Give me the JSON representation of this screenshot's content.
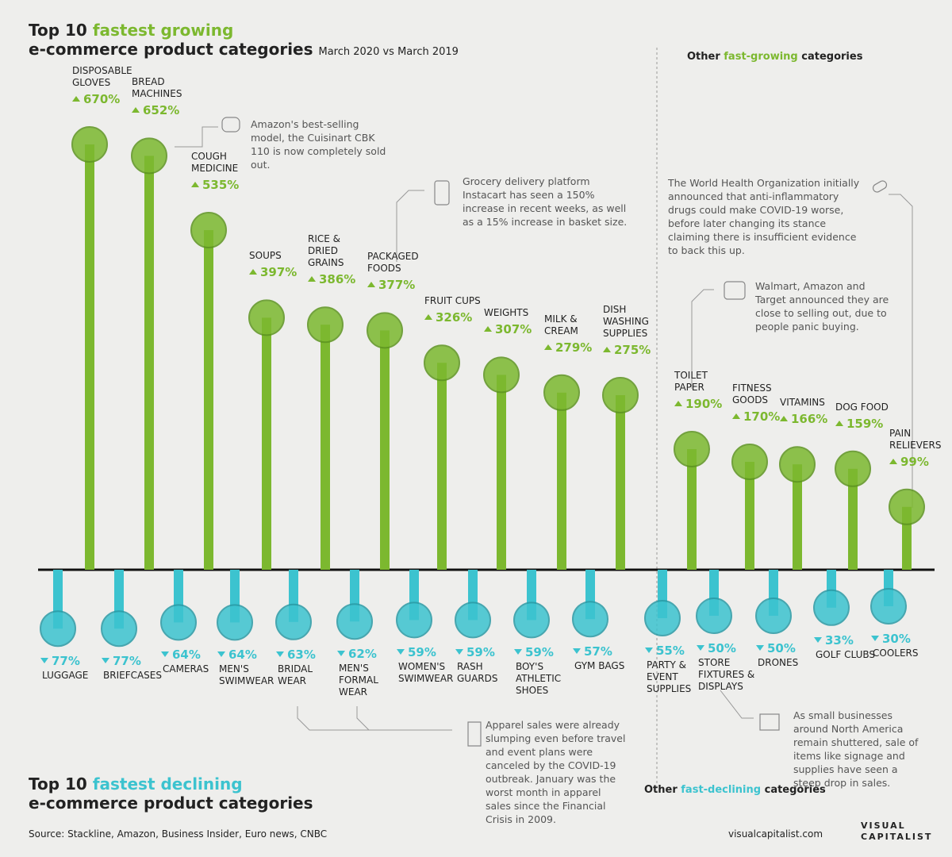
{
  "chart_data": {
    "type": "lollipop",
    "title_top": {
      "pre": "Top 10",
      "highlight": "fastest growing",
      "post": "e-commerce product categories"
    },
    "subtitle": "March 2020 vs March 2019",
    "title_bottom": {
      "pre": "Top 10",
      "highlight": "fastest declining",
      "post": "e-commerce product categories"
    },
    "other_growing_heading": {
      "pre": "Other",
      "highlight": "fast-growing",
      "post": "categories"
    },
    "other_declining_heading": {
      "pre": "Other",
      "highlight": "fast-declining",
      "post": "categories"
    },
    "growing": {
      "color": "#7cb82f",
      "categories": [
        "DISPOSABLE GLOVES",
        "BREAD MACHINES",
        "COUGH MEDICINE",
        "SOUPS",
        "RICE & DRIED GRAINS",
        "PACKAGED FOODS",
        "FRUIT CUPS",
        "WEIGHTS",
        "MILK & CREAM",
        "DISH WASHING SUPPLIES",
        "TOILET PAPER",
        "FITNESS GOODS",
        "VITAMINS",
        "DOG FOOD",
        "PAIN RELIEVERS"
      ],
      "values": [
        670,
        652,
        535,
        397,
        386,
        377,
        326,
        307,
        279,
        275,
        190,
        170,
        166,
        159,
        99
      ],
      "value_labels": [
        "670%",
        "652%",
        "535%",
        "397%",
        "386%",
        "377%",
        "326%",
        "307%",
        "279%",
        "275%",
        "190%",
        "170%",
        "166%",
        "159%",
        "99%"
      ]
    },
    "declining": {
      "color": "#3cc3cf",
      "categories": [
        "LUGGAGE",
        "BRIEFCASES",
        "CAMERAS",
        "MEN'S SWIMWEAR",
        "BRIDAL WEAR",
        "MEN'S FORMAL WEAR",
        "WOMEN'S SWIMWEAR",
        "RASH GUARDS",
        "BOY'S ATHLETIC SHOES",
        "GYM BAGS",
        "PARTY & EVENT SUPPLIES",
        "STORE FIXTURES & DISPLAYS",
        "DRONES",
        "GOLF CLUBS",
        "COOLERS"
      ],
      "values": [
        77,
        77,
        64,
        64,
        63,
        62,
        59,
        59,
        59,
        57,
        55,
        50,
        50,
        33,
        30
      ],
      "value_labels": [
        "77%",
        "77%",
        "64%",
        "64%",
        "63%",
        "62%",
        "59%",
        "59%",
        "59%",
        "57%",
        "55%",
        "50%",
        "50%",
        "33%",
        "30%"
      ]
    },
    "annotations": [
      "Amazon's best-selling model, the Cuisinart CBK 110 is now completely sold out.",
      "Grocery delivery platform Instacart has seen a 150% increase in recent weeks, as well as a 15% increase in basket size.",
      "The World Health Organization initially announced that anti-inflammatory drugs could make COVID-19 worse, before later changing its stance claiming there is insufficient evidence to back this up.",
      "Walmart, Amazon and Target announced they are close to selling out, due to people panic buying.",
      "Apparel sales were already slumping even before travel and event plans were canceled by the COVID-19 outbreak. January was the worst month in apparel sales since the Financial Crisis in 2009.",
      "As small businesses around North America remain shuttered, sale of items like signage and supplies have seen a steep drop in sales."
    ],
    "source": "Source: Stackline, Amazon, Business Insider, Euro news, CNBC",
    "website": "visualcapitalist.com",
    "logo": [
      "VISUAL",
      "CAPITALIST"
    ]
  }
}
